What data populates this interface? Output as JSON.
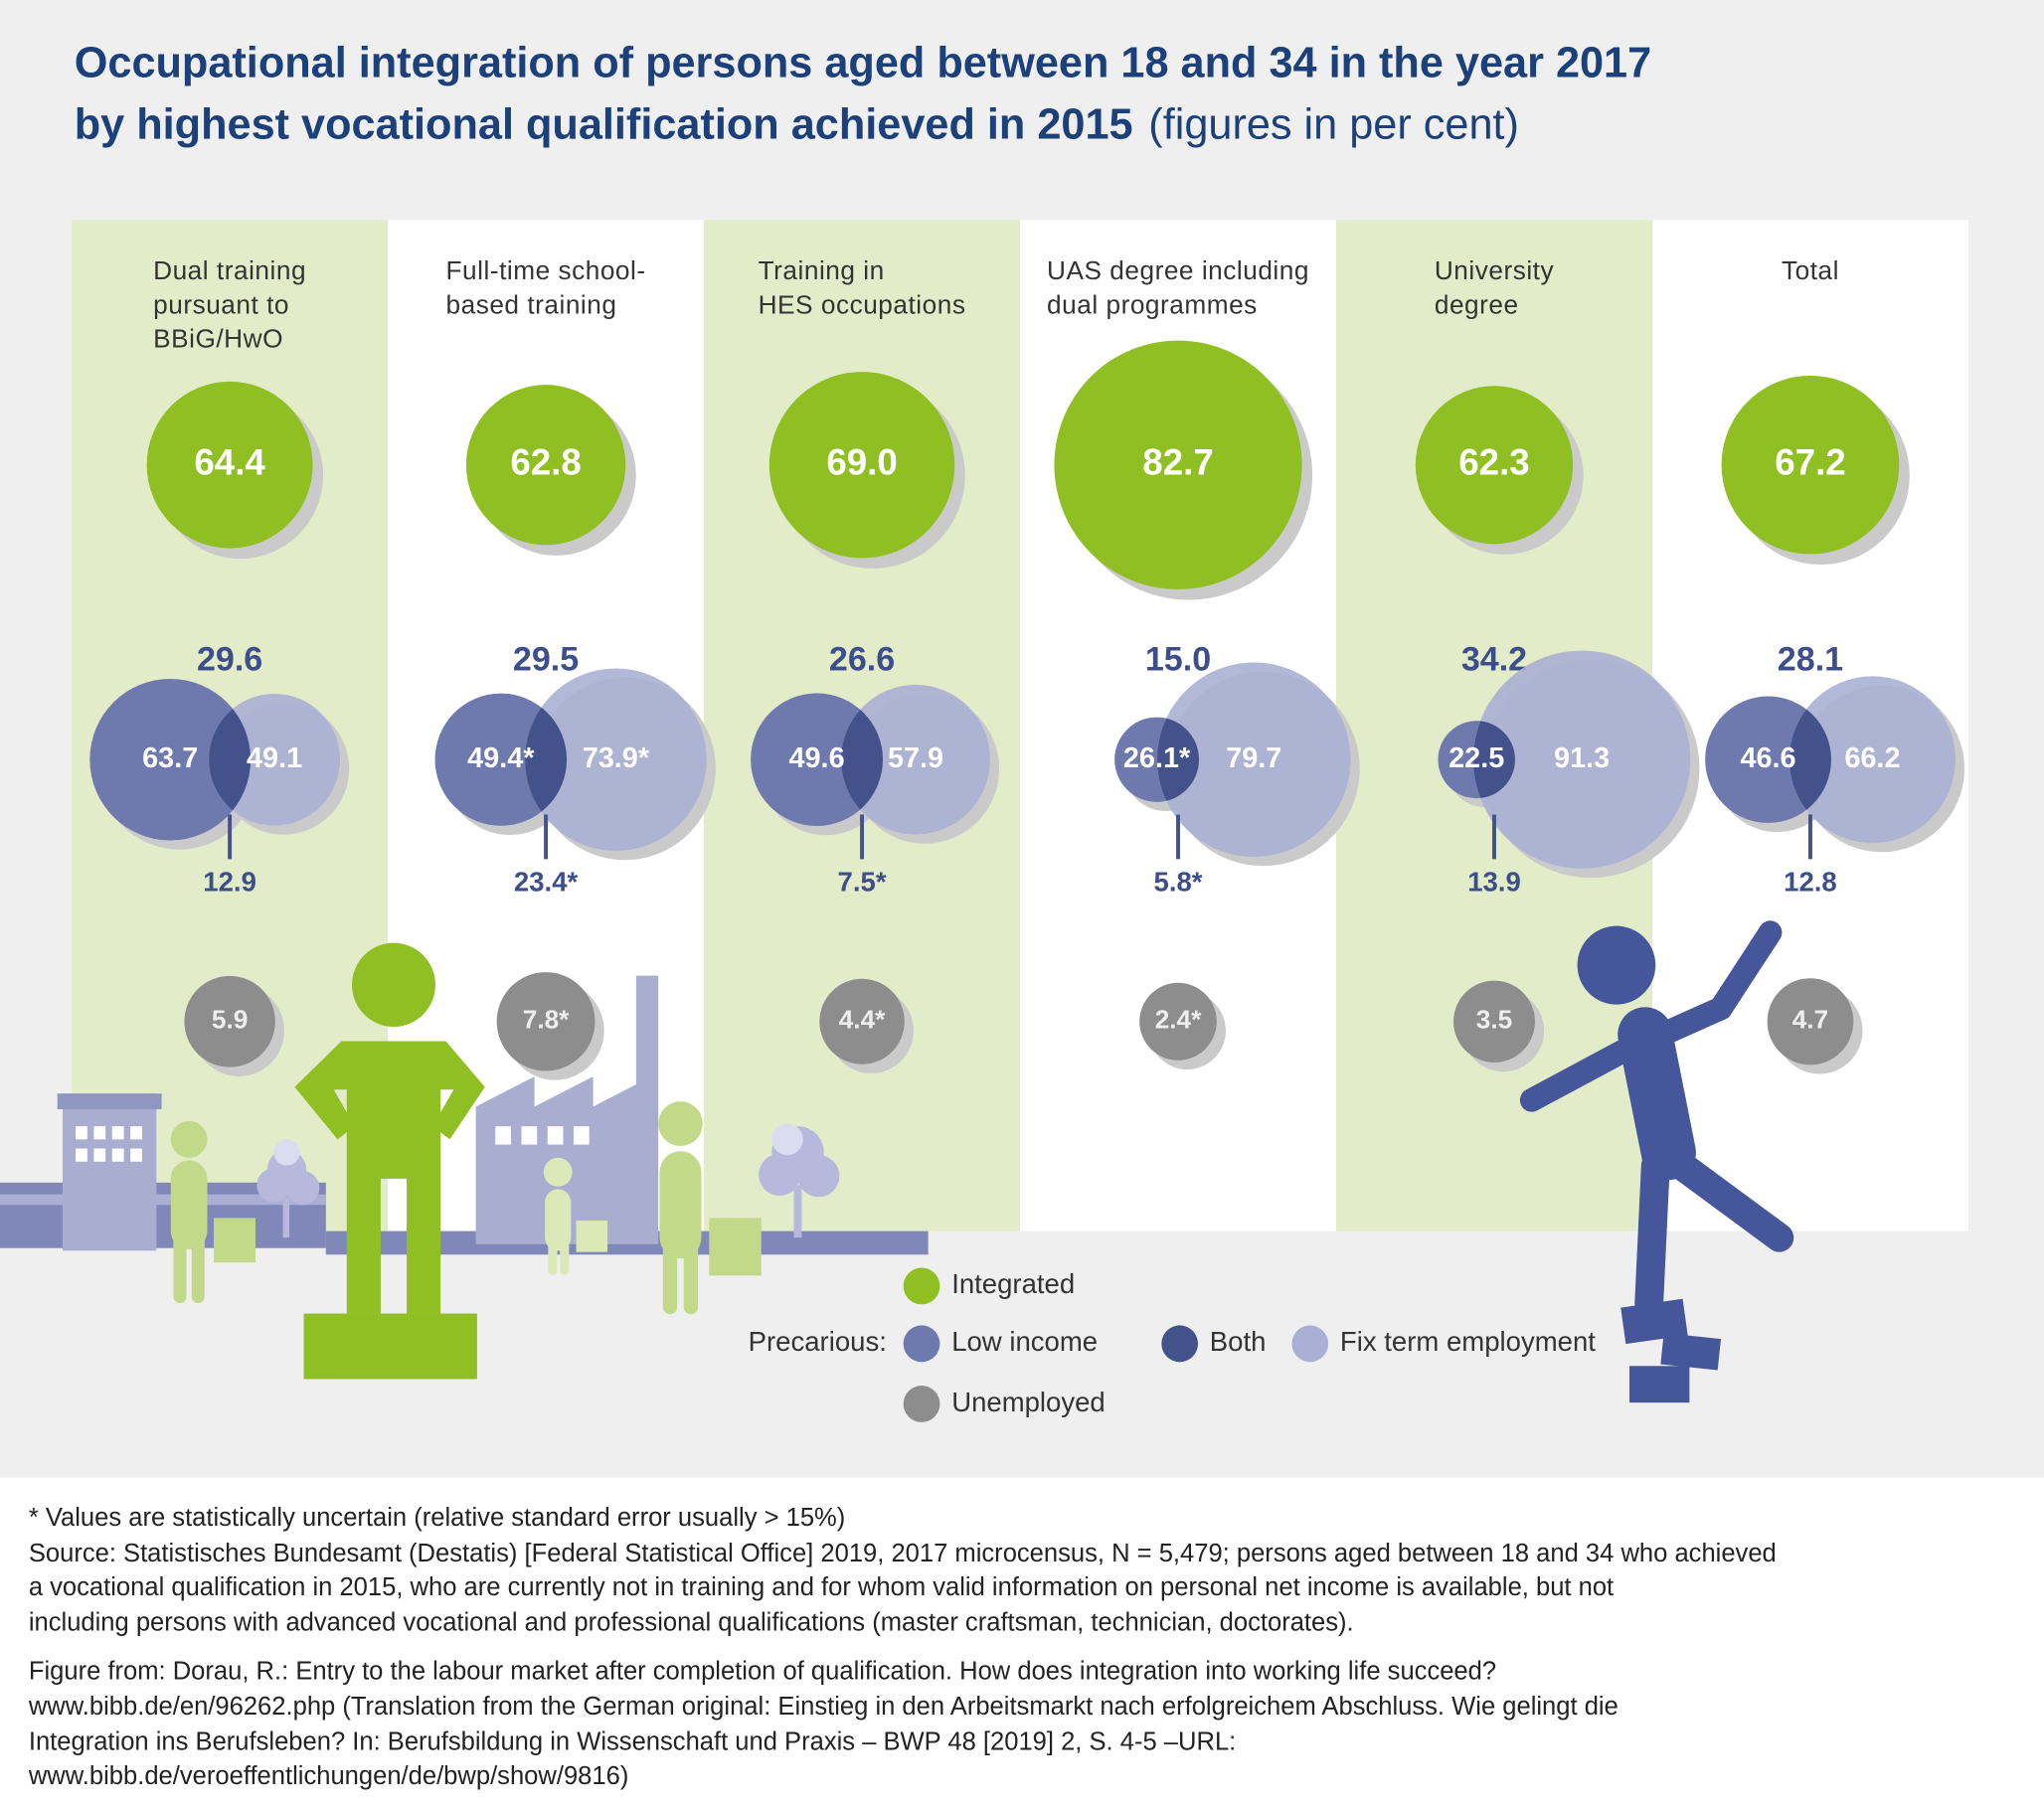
{
  "chart_data": {
    "type": "bubble",
    "title": [
      "Occupational integration of persons aged between 18 and 34 in the year 2017",
      "by highest vocational qualification achieved in 2015"
    ],
    "subtitle": "(figures in per cent)",
    "categories": [
      [
        "Dual training",
        "pursuant to",
        "BBiG/HwO"
      ],
      [
        "Full-time school-",
        "based training"
      ],
      [
        "Training in",
        "HES occupations"
      ],
      [
        "UAS degree including",
        "dual programmes"
      ],
      [
        "University",
        "degree"
      ],
      [
        "Total"
      ]
    ],
    "series": [
      {
        "name": "Integrated",
        "color": "#8fbf22",
        "values": [
          64.4,
          62.8,
          69.0,
          82.7,
          62.3,
          67.2
        ],
        "value_labels": [
          "64.4",
          "62.8",
          "69.0",
          "82.7",
          "62.3",
          "67.2"
        ]
      },
      {
        "name": "Low income",
        "color": "#6e79ad",
        "values": [
          63.7,
          49.4,
          49.6,
          26.1,
          22.5,
          46.6
        ],
        "value_labels": [
          "63.7",
          "49.4*",
          "49.6",
          "26.1*",
          "22.5",
          "46.6"
        ]
      },
      {
        "name": "Both",
        "color": "#44528c",
        "values": [
          12.9,
          23.4,
          7.5,
          5.8,
          13.9,
          12.8
        ],
        "value_labels": [
          "12.9",
          "23.4*",
          "7.5*",
          "5.8*",
          "13.9",
          "12.8"
        ]
      },
      {
        "name": "Fix term employment",
        "color": "#aab0d3",
        "values": [
          49.1,
          73.9,
          57.9,
          79.7,
          91.3,
          66.2
        ],
        "value_labels": [
          "49.1",
          "73.9*",
          "57.9",
          "79.7",
          "91.3",
          "66.2"
        ]
      },
      {
        "name": "Unemployed",
        "color": "#8d8d8d",
        "values": [
          5.9,
          7.8,
          4.4,
          2.4,
          3.5,
          4.7
        ],
        "value_labels": [
          "5.9",
          "7.8*",
          "4.4*",
          "2.4*",
          "3.5",
          "4.7"
        ]
      }
    ],
    "precarious": {
      "name": "Precarious:",
      "values": [
        29.6,
        29.5,
        26.6,
        15.0,
        34.2,
        28.1
      ],
      "value_labels": [
        "29.6",
        "29.5",
        "26.6",
        "15.0",
        "34.2",
        "28.1"
      ]
    },
    "notes": [
      "* Values are statistically uncertain (relative standard error usually > 15%)",
      "Source: Statistisches Bundesamt (Destatis) [Federal Statistical Office] 2019, 2017 microcensus, N = 5,479; persons aged between 18 and 34 who achieved",
      "a vocational qualification in 2015, who are currently not in training and for whom valid information on personal net income is available, but not",
      "including persons with advanced vocational and professional qualifications (master craftsman, technician, doctorates).",
      "Figure from: Dorau, R.: Entry to the labour market after completion of qualification. How does integration into working life succeed?",
      "www.bibb.de/en/96262.php (Translation from the German original: Einstieg in den Arbeitsmarkt nach erfolgreichem Abschluss. Wie gelingt die",
      "Integration ins Berufsleben? In: Berufsbildung in Wissenschaft und Praxis – BWP 48 [2019] 2, S. 4-5 –URL:",
      "www.bibb.de/veroeffentlichungen/de/bwp/show/9816)"
    ]
  }
}
